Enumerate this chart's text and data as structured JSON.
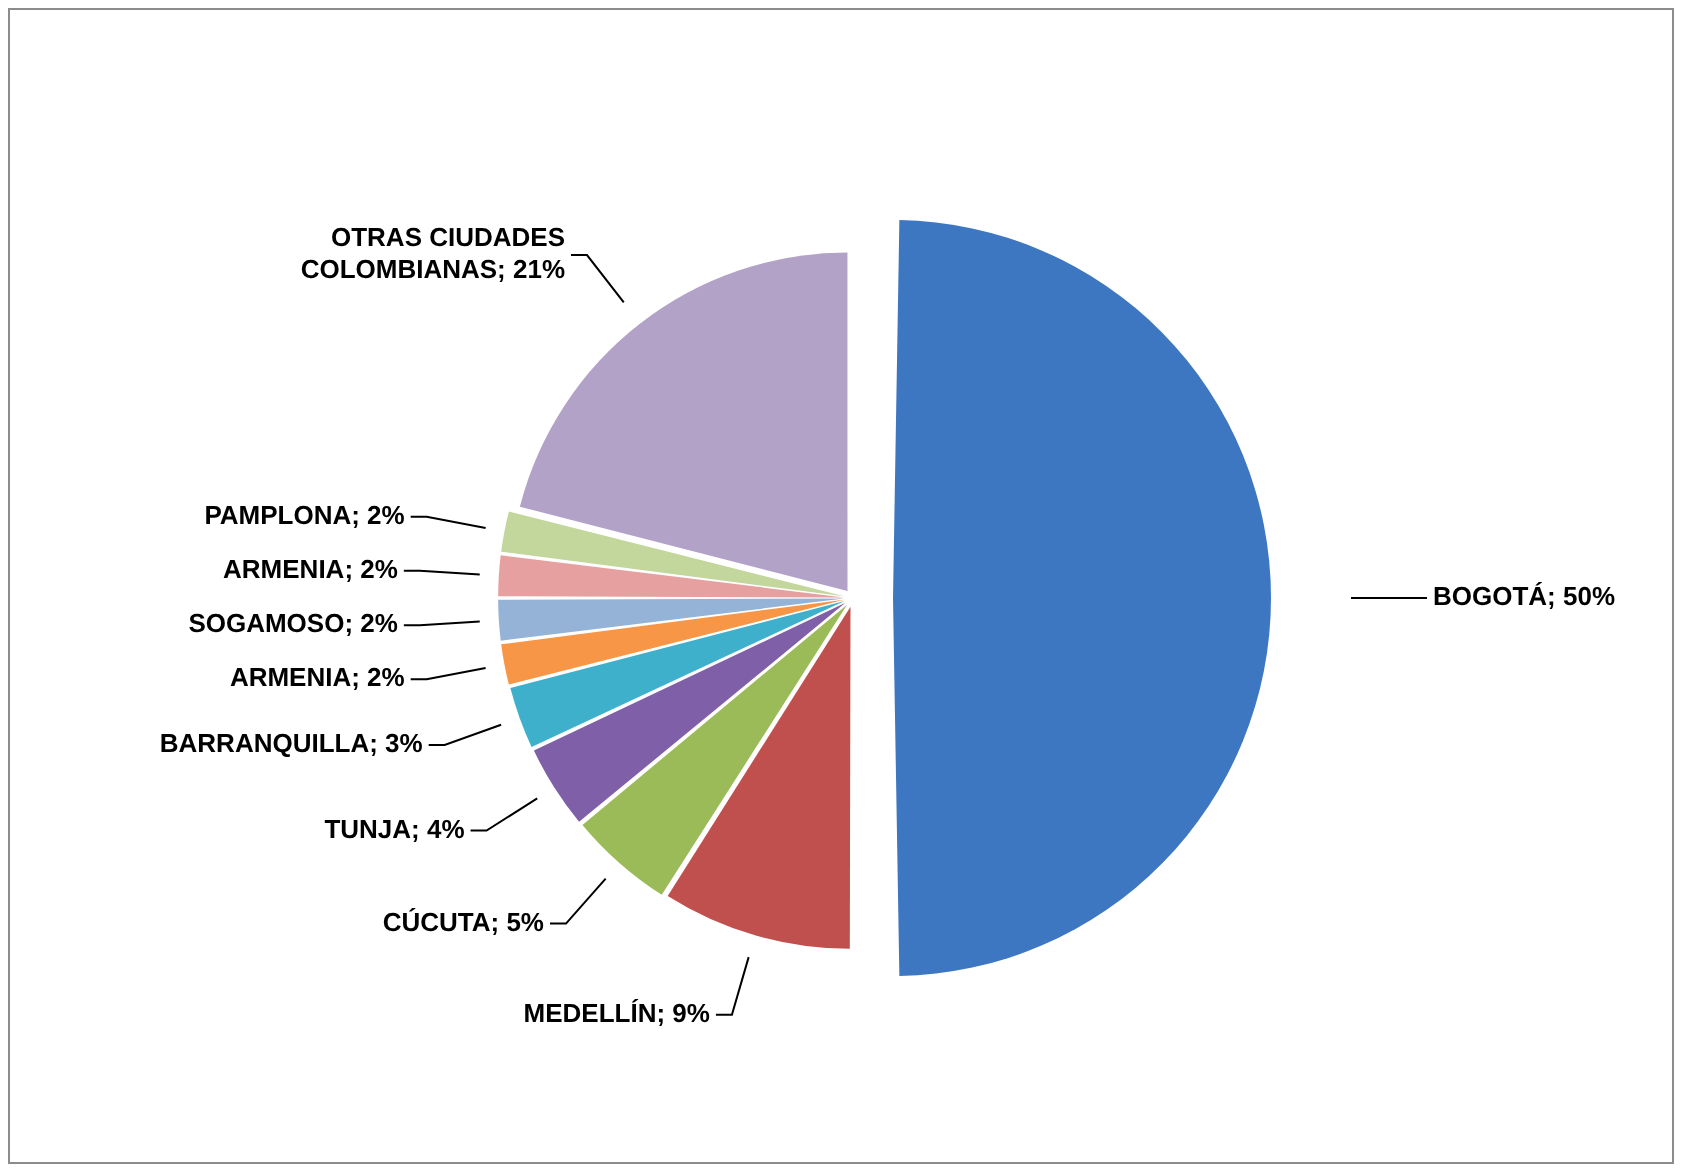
{
  "chart_data": {
    "type": "pie",
    "categories": [
      "BOGOTÁ",
      "MEDELLÍN",
      "CÚCUTA",
      "TUNJA",
      "BARRANQUILLA",
      "ARMENIA",
      "SOGAMOSO",
      "ARMENIA",
      "PAMPLONA",
      "OTRAS CIUDADES COLOMBIANAS"
    ],
    "values": [
      50,
      9,
      5,
      4,
      3,
      2,
      2,
      2,
      2,
      21
    ],
    "colors": [
      "#3d77c2",
      "#c0504d",
      "#9bbb59",
      "#7f5fa8",
      "#3fb0cc",
      "#f79646",
      "#95b3d7",
      "#e6a0a0",
      "#c3d69b",
      "#b3a2c7"
    ],
    "value_labels": [
      "; 50%",
      "; 9%",
      "; 5%",
      "; 4%",
      "; 3%",
      "; 2%",
      "; 2%",
      "; 2%",
      "; 2%",
      "; 21%"
    ],
    "legend": false
  }
}
